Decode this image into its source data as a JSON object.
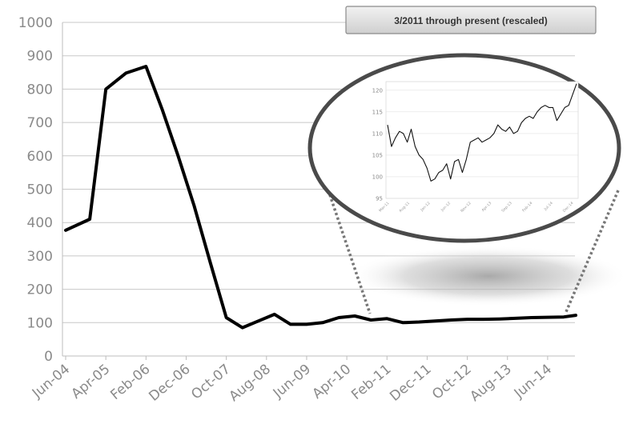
{
  "chart_data": [
    {
      "type": "line",
      "title": "",
      "xlabel": "",
      "ylabel": "",
      "ylim": [
        0,
        1000
      ],
      "y_ticks": [
        0,
        100,
        200,
        300,
        400,
        500,
        600,
        700,
        800,
        900,
        1000
      ],
      "x_tick_labels": [
        "Jun-04",
        "Apr-05",
        "Feb-06",
        "Dec-06",
        "Oct-07",
        "Aug-08",
        "Jun-09",
        "Apr-10",
        "Feb-11",
        "Dec-11",
        "Oct-12",
        "Aug-13",
        "Jun-14"
      ],
      "grid": true,
      "series": [
        {
          "color": "#000000",
          "x": [
            "Jun-04",
            "Dec-04",
            "Apr-05",
            "Sep-05",
            "Feb-06",
            "Jun-06",
            "Oct-06",
            "Feb-07",
            "Jun-07",
            "Oct-07",
            "Feb-08",
            "Jun-08",
            "Oct-08",
            "Feb-09",
            "Jun-09",
            "Oct-09",
            "Feb-10",
            "Jun-10",
            "Oct-10",
            "Feb-11",
            "Jun-11",
            "Oct-11",
            "Feb-12",
            "Jun-12",
            "Oct-12",
            "Feb-13",
            "Jun-13",
            "Oct-13",
            "Feb-14",
            "Jun-14",
            "Oct-14",
            "Jan-15"
          ],
          "values": [
            377,
            410,
            800,
            848,
            868,
            740,
            600,
            450,
            280,
            115,
            85,
            105,
            125,
            95,
            95,
            100,
            115,
            120,
            108,
            112,
            100,
            102,
            105,
            108,
            110,
            110,
            111,
            113,
            115,
            116,
            117,
            122
          ]
        }
      ]
    },
    {
      "type": "line",
      "title": "3/2011 through present (rescaled)",
      "xlabel": "",
      "ylabel": "",
      "ylim": [
        95,
        122
      ],
      "y_ticks": [
        95,
        100,
        105,
        110,
        115,
        120
      ],
      "x_tick_labels": [
        "Mar-11",
        "Aug-11",
        "Jan-12",
        "Jun-12",
        "Nov-12",
        "Apr-13",
        "Sep-13",
        "Feb-14",
        "Jul-14",
        "Dec-14"
      ],
      "grid": true,
      "series": [
        {
          "color": "#000000",
          "values": [
            112,
            107,
            109,
            110.5,
            110,
            108,
            111,
            107,
            105,
            104,
            102,
            99,
            99.5,
            101,
            101.5,
            103,
            99.5,
            103.5,
            104,
            101,
            104,
            108,
            108.5,
            109,
            108,
            108.5,
            109,
            110,
            112,
            111,
            110.5,
            111.5,
            110,
            110.5,
            112.5,
            113.5,
            114,
            113.5,
            115,
            116,
            116.5,
            116,
            116,
            113,
            114.5,
            116,
            116.5,
            119,
            121.5
          ]
        }
      ]
    }
  ]
}
